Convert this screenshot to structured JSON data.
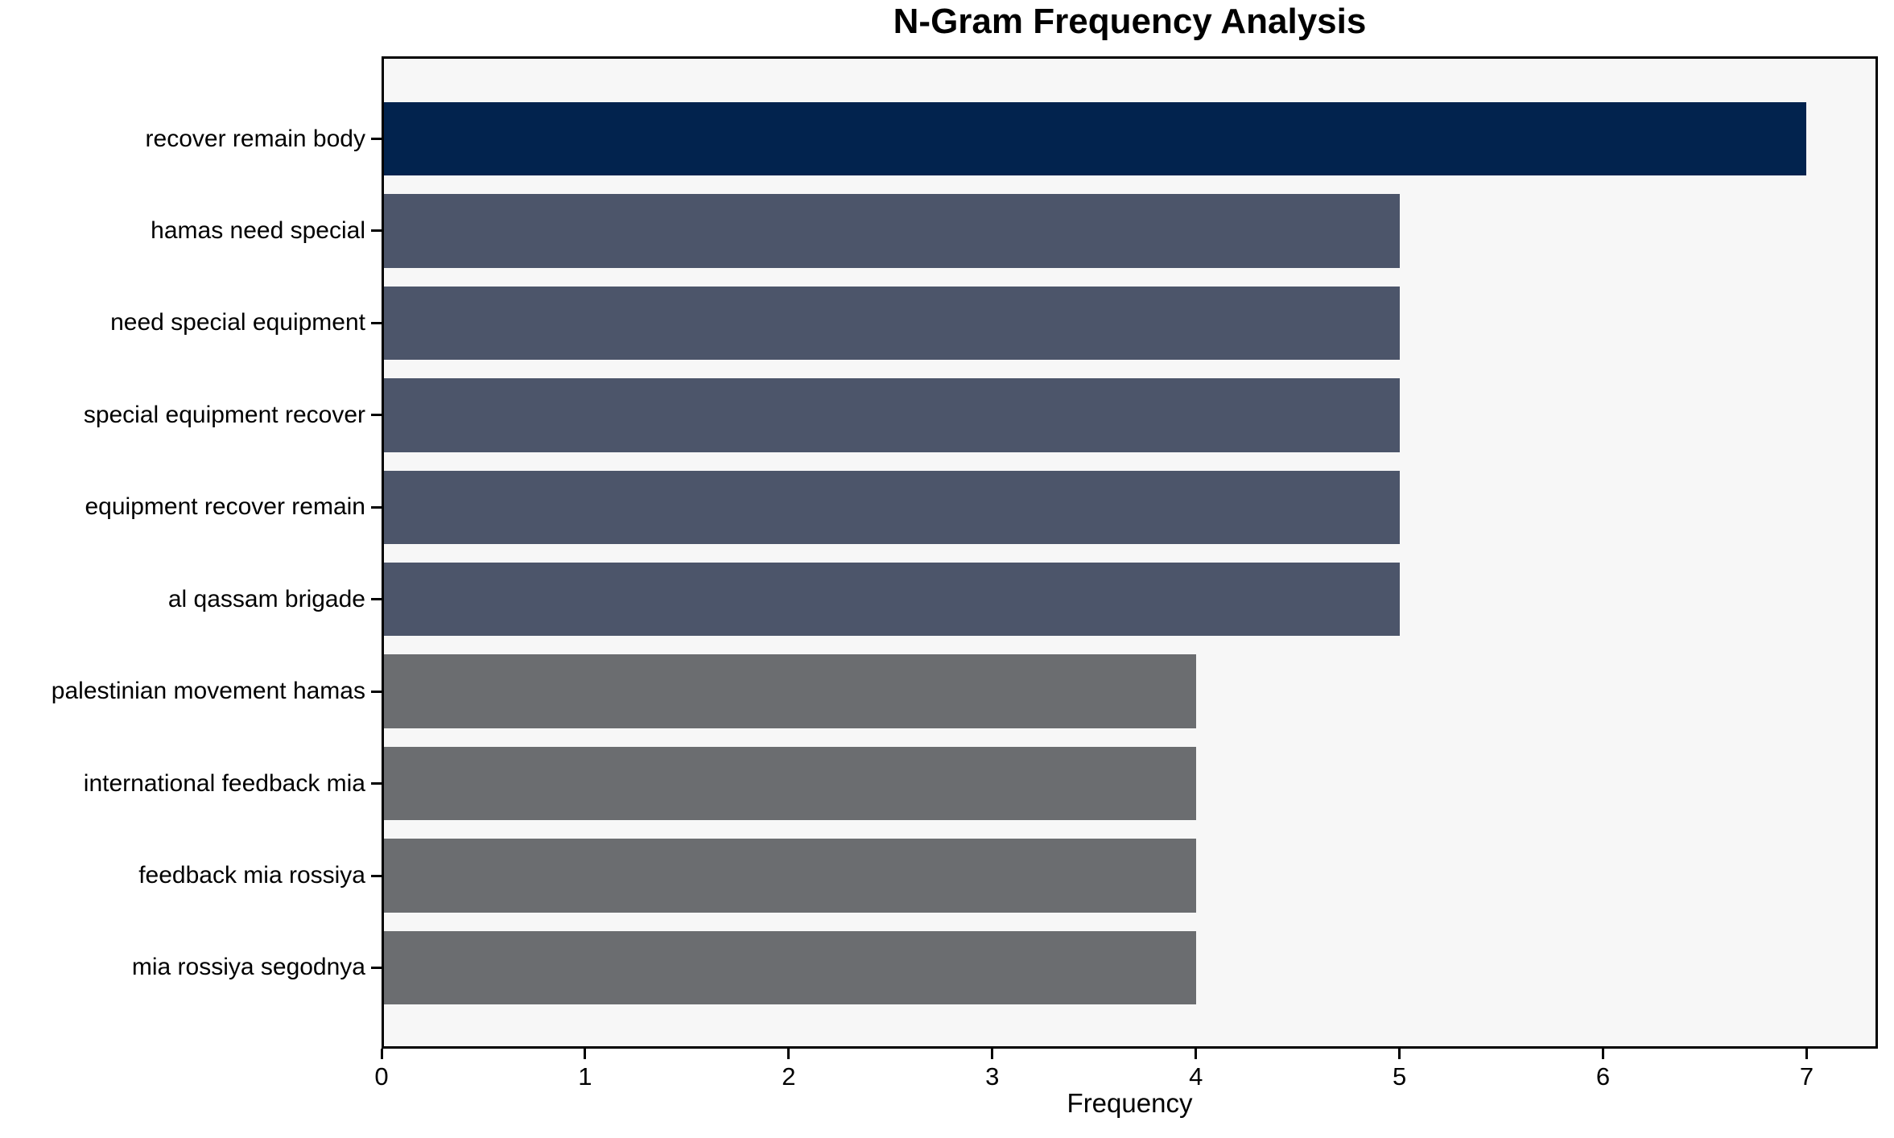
{
  "chart_data": {
    "type": "bar",
    "orientation": "horizontal",
    "title": "N-Gram Frequency Analysis",
    "xlabel": "Frequency",
    "ylabel": "",
    "categories": [
      "recover remain body",
      "hamas need special",
      "need special equipment",
      "special equipment recover",
      "equipment recover remain",
      "al qassam brigade",
      "palestinian movement hamas",
      "international feedback mia",
      "feedback mia rossiya",
      "mia rossiya segodnya"
    ],
    "values": [
      7,
      5,
      5,
      5,
      5,
      5,
      4,
      4,
      4,
      4
    ],
    "bar_colors": [
      "#02234e",
      "#4c556a",
      "#4c556a",
      "#4c556a",
      "#4c556a",
      "#4c556a",
      "#6b6d70",
      "#6b6d70",
      "#6b6d70",
      "#6b6d70"
    ],
    "xticks": [
      0,
      1,
      2,
      3,
      4,
      5,
      6,
      7
    ],
    "xlim": [
      0,
      7.35
    ],
    "grid": false,
    "legend": null,
    "plot_background": "#f7f7f7",
    "figure_background": "#ffffff",
    "axis_color": "#000000"
  }
}
